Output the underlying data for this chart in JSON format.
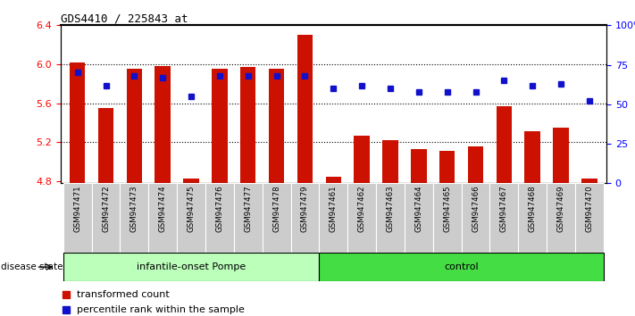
{
  "title": "GDS4410 / 225843_at",
  "samples": [
    "GSM947471",
    "GSM947472",
    "GSM947473",
    "GSM947474",
    "GSM947475",
    "GSM947476",
    "GSM947477",
    "GSM947478",
    "GSM947479",
    "GSM947461",
    "GSM947462",
    "GSM947463",
    "GSM947464",
    "GSM947465",
    "GSM947466",
    "GSM947467",
    "GSM947468",
    "GSM947469",
    "GSM947470"
  ],
  "red_values": [
    6.02,
    5.55,
    5.95,
    5.98,
    4.83,
    5.95,
    5.97,
    5.95,
    6.3,
    4.85,
    5.27,
    5.22,
    5.13,
    5.11,
    5.16,
    5.57,
    5.31,
    5.35,
    4.83
  ],
  "blue_values": [
    70,
    62,
    68,
    67,
    55,
    68,
    68,
    68,
    68,
    60,
    62,
    60,
    58,
    58,
    58,
    65,
    62,
    63,
    52
  ],
  "group1_label": "infantile-onset Pompe",
  "group2_label": "control",
  "group1_count": 9,
  "group2_count": 10,
  "ylim_left": [
    4.78,
    6.4
  ],
  "ylim_right": [
    0,
    100
  ],
  "yticks_left": [
    4.8,
    5.2,
    5.6,
    6.0,
    6.4
  ],
  "yticks_right": [
    0,
    25,
    50,
    75,
    100
  ],
  "bar_color": "#CC1100",
  "dot_color": "#1111CC",
  "group1_bg": "#BBFFBB",
  "group2_bg": "#44DD44",
  "xticklabel_bg": "#CCCCCC",
  "legend_items": [
    "transformed count",
    "percentile rank within the sample"
  ],
  "disease_state_label": "disease state",
  "baseline": 4.78,
  "dotted_lines": [
    6.0,
    5.6,
    5.2
  ]
}
